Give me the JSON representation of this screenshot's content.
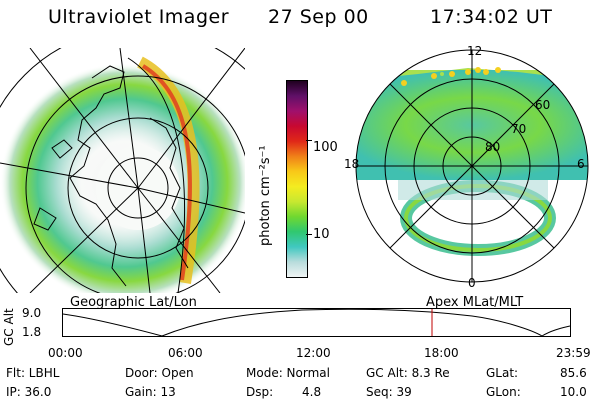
{
  "header": {
    "instrument": "Ultraviolet Imager",
    "date": "27 Sep 00",
    "time": "17:34:02 UT"
  },
  "geo_panel": {
    "caption": "Geographic Lat/Lon"
  },
  "apex_panel": {
    "caption": "Apex MLat/MLT",
    "mlt_labels": {
      "top": "12",
      "right": "6",
      "bottom": "0",
      "left": "18"
    },
    "lat_labels": [
      "60",
      "70",
      "80"
    ]
  },
  "colorbar": {
    "label": "photon cm⁻²s⁻¹",
    "ticks": [
      "100",
      "10"
    ],
    "colors": [
      "#f0f4f4",
      "#b8dcdc",
      "#40c8c0",
      "#30c870",
      "#70d830",
      "#c8e830",
      "#f4ec20",
      "#f8c818",
      "#f08018",
      "#e02818",
      "#c80830",
      "#a0106c",
      "#601068",
      "#200020"
    ]
  },
  "gc_alt_plot": {
    "ylabel": "GC Alt",
    "y_max": "9.0",
    "y_min": "1.8",
    "x_ticks": [
      "00:00",
      "06:00",
      "12:00",
      "18:00",
      "23:59"
    ],
    "marker_color": "#c00000"
  },
  "info": {
    "flt": "Flt: LBHL",
    "ip": "IP: 36.0",
    "door": "Door: Open",
    "gain": "Gain: 13",
    "mode": "Mode: Normal",
    "dsp_label": "Dsp:",
    "dsp_value": "4.8",
    "gc_alt": "GC Alt: 8.3 Re",
    "seq": "Seq: 39",
    "glat_label": "GLat:",
    "glat_value": "85.6",
    "glon_label": "GLon:",
    "glon_value": "10.0"
  }
}
